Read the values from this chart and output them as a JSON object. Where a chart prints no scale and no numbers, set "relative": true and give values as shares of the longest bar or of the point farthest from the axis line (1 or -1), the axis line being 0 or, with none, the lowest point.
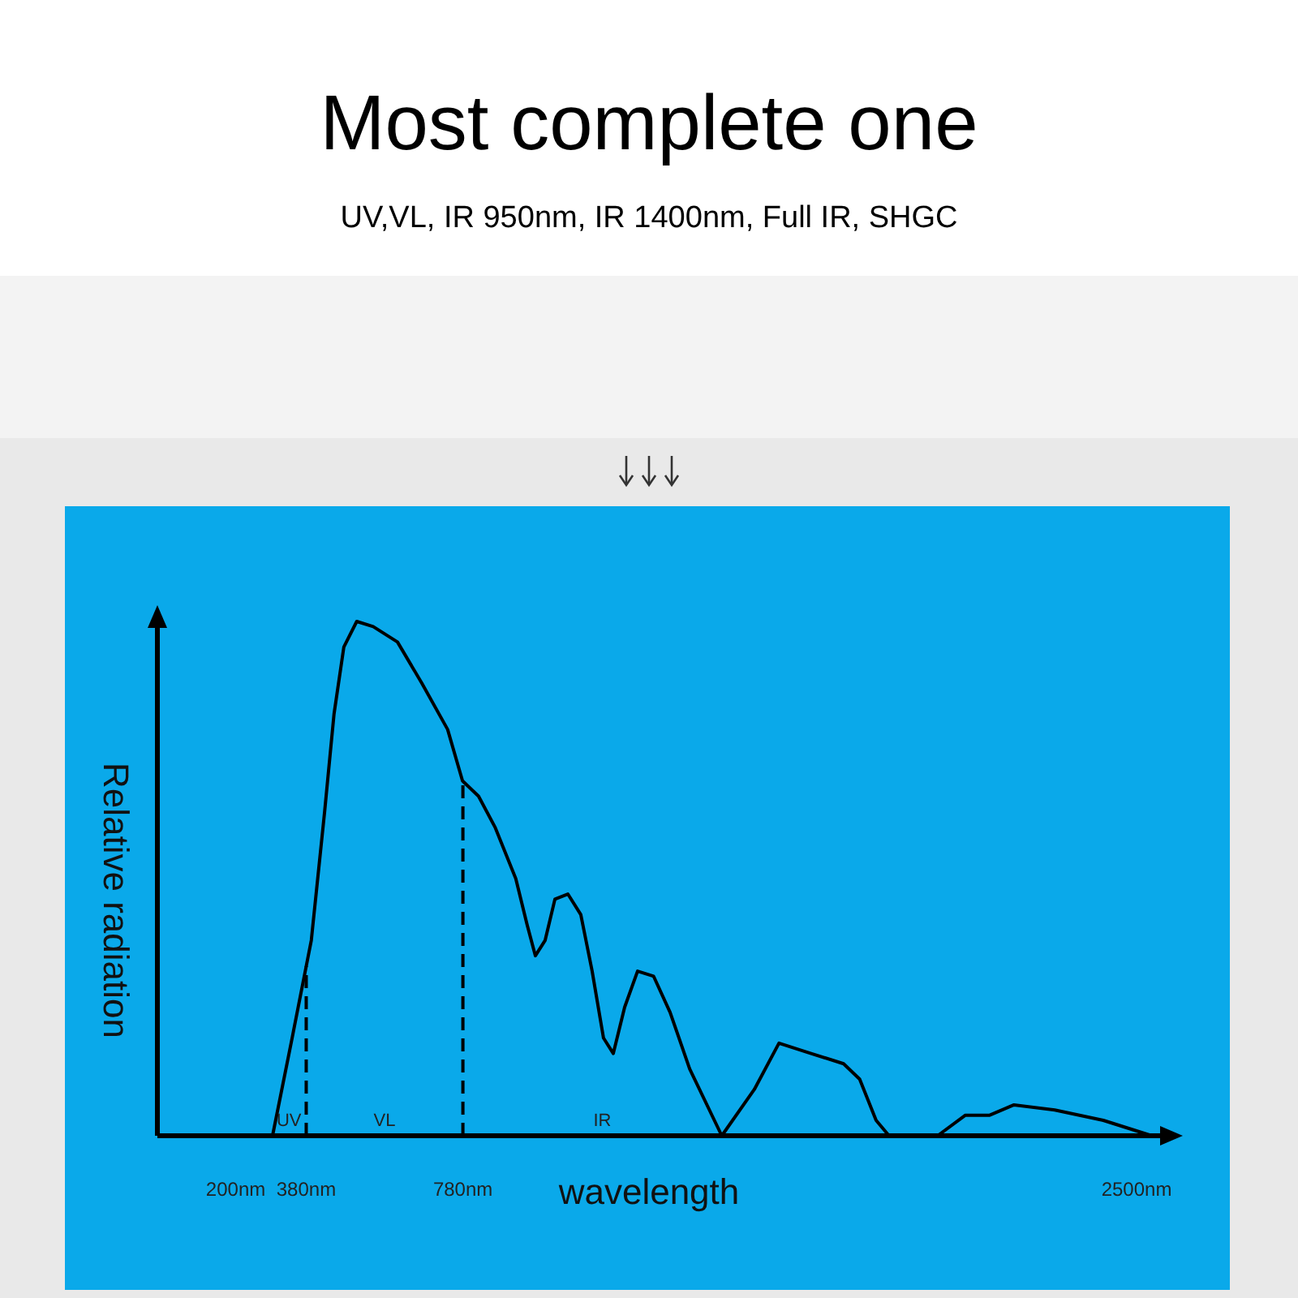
{
  "chart_data": {
    "type": "line",
    "title": "Most complete one",
    "subtitle": "UV,VL, IR 950nm, IR 1400nm, Full IR, SHGC",
    "xlabel": "wavelength",
    "ylabel": "Relative radiation",
    "relative": true,
    "marker": "none",
    "line_style": "solid",
    "xlim": [
      0,
      2560
    ],
    "xticks": [
      {
        "value": 200,
        "label": "200nm"
      },
      {
        "value": 380,
        "label": "380nm"
      },
      {
        "value": 780,
        "label": "780nm"
      },
      {
        "value": 2500,
        "label": "2500nm"
      }
    ],
    "series": [
      {
        "color": "#000000",
        "x": [
          294,
          344,
          393,
          427,
          451,
          476,
          509,
          551,
          613,
          675,
          741,
          779,
          820,
          862,
          915,
          944,
          965,
          990,
          1015,
          1048,
          1081,
          1110,
          1139,
          1164,
          1193,
          1226,
          1267,
          1309,
          1359,
          1441,
          1524,
          1587,
          1669,
          1752,
          1793,
          1835,
          1868,
          1992,
          2063,
          2125,
          2187,
          2291,
          2415,
          2539
        ],
        "values": [
          0,
          0.19,
          0.38,
          0.63,
          0.82,
          0.95,
          1,
          0.99,
          0.96,
          0.88,
          0.79,
          0.69,
          0.66,
          0.6,
          0.5,
          0.41,
          0.35,
          0.38,
          0.46,
          0.47,
          0.43,
          0.32,
          0.19,
          0.16,
          0.25,
          0.32,
          0.31,
          0.24,
          0.13,
          0,
          0.09,
          0.18,
          0.16,
          0.14,
          0.11,
          0.03,
          0,
          0,
          0.04,
          0.04,
          0.06,
          0.05,
          0.03,
          0
        ]
      }
    ],
    "ref_lines": [
      {
        "axis": "x",
        "value": 380,
        "line_style": "dashed",
        "color": "#000000"
      },
      {
        "axis": "x",
        "value": 780,
        "line_style": "dashed",
        "color": "#000000"
      }
    ],
    "annotations": [
      "UV",
      "VL",
      "IR"
    ]
  }
}
